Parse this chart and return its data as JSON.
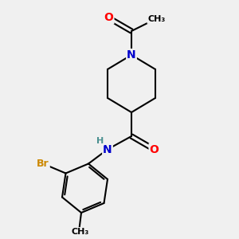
{
  "background_color": "#f0f0f0",
  "bond_color": "#000000",
  "bond_width": 1.5,
  "atom_colors": {
    "O": "#ff0000",
    "N": "#0000cd",
    "Br": "#cc8800",
    "C": "#000000",
    "H": "#4a9090"
  },
  "font_size": 9,
  "fig_width": 3.0,
  "fig_height": 3.0,
  "dpi": 100
}
